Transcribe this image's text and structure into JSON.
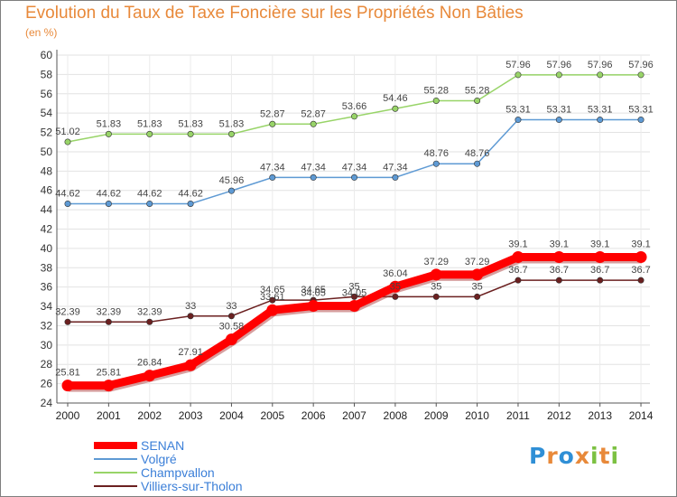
{
  "title": "Evolution du Taux de Taxe Foncière sur les Propriétés Non Bâties",
  "unit_label": "(en %)",
  "logo": {
    "letters": [
      "P",
      "r",
      "o",
      "x",
      "i",
      "t",
      "i"
    ],
    "colors": [
      "#2f8fd6",
      "#e8893a",
      "#2f8fd6",
      "#e8893a",
      "#7cc142",
      "#e8893a",
      "#7cc142"
    ]
  },
  "chart_data": {
    "type": "line",
    "title": "Evolution du Taux de Taxe Foncière sur les Propriétés Non Bâties",
    "ylabel": "(en %)",
    "xlabel": "",
    "x": [
      "2000",
      "2001",
      "2002",
      "2003",
      "2004",
      "2005",
      "2006",
      "2007",
      "2008",
      "2009",
      "2010",
      "2011",
      "2012",
      "2013",
      "2014"
    ],
    "ylim": [
      24,
      60
    ],
    "yticks": [
      "24",
      "26",
      "28",
      "30",
      "32",
      "34",
      "36",
      "38",
      "40",
      "42",
      "44",
      "46",
      "48",
      "50",
      "52",
      "54",
      "56",
      "58",
      "60"
    ],
    "grid": true,
    "legend_position": "bottom-left",
    "series": [
      {
        "name": "SENAN",
        "color": "#ff0000",
        "bold": true,
        "values": [
          25.81,
          25.81,
          26.84,
          27.91,
          30.58,
          33.61,
          34.05,
          34.05,
          36.04,
          37.29,
          37.29,
          39.1,
          39.1,
          39.1,
          39.1
        ],
        "labels": [
          "25.81",
          "25.81",
          "26.84",
          "27.91",
          "30.58",
          "33.61",
          "34.05",
          "34.05",
          "36.04",
          "37.29",
          "37.29",
          "39.1",
          "39.1",
          "39.1",
          "39.1"
        ]
      },
      {
        "name": "Volgré",
        "color": "#5e9ad4",
        "bold": false,
        "values": [
          44.62,
          44.62,
          44.62,
          44.62,
          45.96,
          47.34,
          47.34,
          47.34,
          47.34,
          48.76,
          48.76,
          53.31,
          53.31,
          53.31,
          53.31
        ],
        "labels": [
          "44.62",
          "44.62",
          "44.62",
          "44.62",
          "45.96",
          "47.34",
          "47.34",
          "47.34",
          "47.34",
          "48.76",
          "48.76",
          "53.31",
          "53.31",
          "53.31",
          "53.31"
        ]
      },
      {
        "name": "Champvallon",
        "color": "#98d468",
        "bold": false,
        "values": [
          51.02,
          51.83,
          51.83,
          51.83,
          51.83,
          52.87,
          52.87,
          53.66,
          54.46,
          55.28,
          55.28,
          57.96,
          57.96,
          57.96,
          57.96
        ],
        "labels": [
          "51.02",
          "51.83",
          "51.83",
          "51.83",
          "51.83",
          "52.87",
          "52.87",
          "53.66",
          "54.46",
          "55.28",
          "55.28",
          "57.96",
          "57.96",
          "57.96",
          "57.96"
        ]
      },
      {
        "name": "Villiers-sur-Tholon",
        "color": "#6b2020",
        "bold": false,
        "values": [
          32.39,
          32.39,
          32.39,
          33,
          33,
          34.65,
          34.65,
          35,
          35,
          35,
          35,
          36.7,
          36.7,
          36.7,
          36.7
        ],
        "labels": [
          "32.39",
          "32.39",
          "32.39",
          "33",
          "33",
          "34.65",
          "34.65",
          "35",
          "35",
          "35",
          "35",
          "36.7",
          "36.7",
          "36.7",
          "36.7"
        ]
      }
    ]
  }
}
